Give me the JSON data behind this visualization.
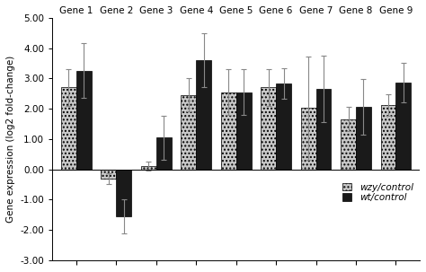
{
  "genes": [
    "Gene 1",
    "Gene 2",
    "Gene 3",
    "Gene 4",
    "Gene 5",
    "Gene 6",
    "Gene 7",
    "Gene 8",
    "Gene 9"
  ],
  "wzy_values": [
    2.7,
    -0.3,
    0.1,
    2.45,
    2.55,
    2.7,
    2.03,
    1.65,
    2.12
  ],
  "wt_values": [
    3.25,
    -1.55,
    1.05,
    3.6,
    2.55,
    2.82,
    2.65,
    2.05,
    2.85
  ],
  "wzy_errors": [
    0.6,
    0.18,
    0.15,
    0.55,
    0.75,
    0.6,
    1.7,
    0.4,
    0.35
  ],
  "wt_errors": [
    0.9,
    0.55,
    0.72,
    0.9,
    0.75,
    0.5,
    1.1,
    0.92,
    0.65
  ],
  "wzy_color": "#c8c8c8",
  "wt_color": "#1a1a1a",
  "wzy_hatch": "....",
  "ylabel": "Gene expression (log2 fold-change)",
  "ylim": [
    -3.0,
    5.0
  ],
  "yticks": [
    -3.0,
    -2.0,
    -1.0,
    0.0,
    1.0,
    2.0,
    3.0,
    4.0,
    5.0
  ],
  "ytick_labels": [
    "-3.00",
    "-2.00",
    "-1.00",
    "0.00",
    "1.00",
    "2.00",
    "3.00",
    "4.00",
    "5.00"
  ],
  "legend_wzy": "wzy/control",
  "legend_wt": "wt/control",
  "bar_width": 0.38,
  "fig_width": 4.74,
  "fig_height": 3.03,
  "dpi": 100
}
